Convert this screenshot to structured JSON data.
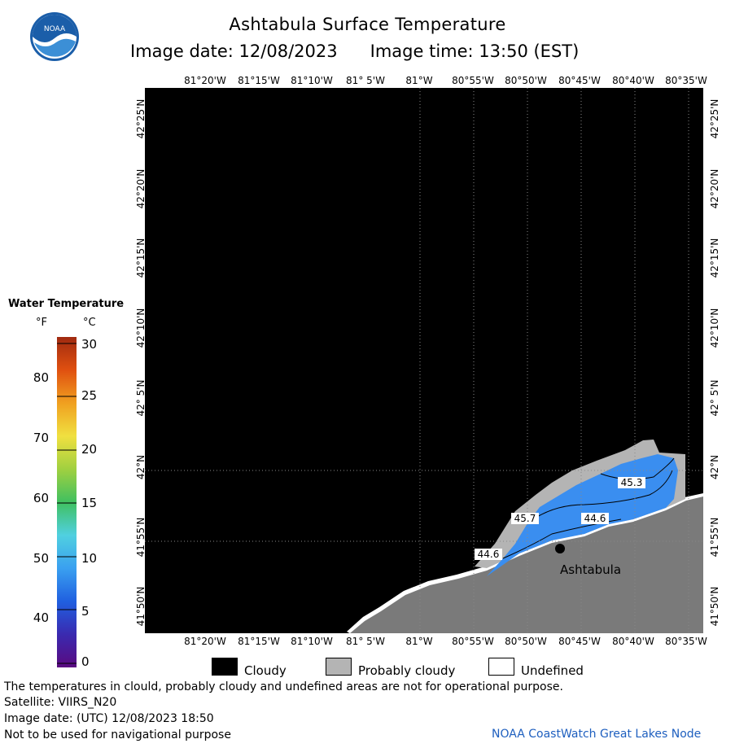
{
  "header": {
    "title": "Ashtabula Surface Temperature",
    "image_date_label": "Image date: 12/08/2023",
    "image_time_label": "Image time: 13:50 (EST)",
    "logo_text": "NOAA"
  },
  "map": {
    "lon_labels_top": [
      "81°20'W",
      "81°15'W",
      "81°10'W",
      "81° 5'W",
      "81°W",
      "80°55'W",
      "80°50'W",
      "80°45'W",
      "80°40'W",
      "80°35'W"
    ],
    "lon_labels_bottom": [
      "81°20'W",
      "81°15'W",
      "81°10'W",
      "81° 5'W",
      "81°W",
      "80°55'W",
      "80°50'W",
      "80°45'W",
      "80°40'W",
      "80°35'W"
    ],
    "lat_labels": [
      "42°25'N",
      "42°20'N",
      "42°15'N",
      "42°10'N",
      "42° 5'N",
      "42°N",
      "41°55'N",
      "41°50'N"
    ],
    "contour_labels": [
      "45.3",
      "45.7",
      "44.6",
      "44.6"
    ],
    "city_label": "Ashtabula",
    "colors": {
      "cloudy": "#000000",
      "probably_cloudy": "#b4b4b4",
      "land": "#7a7a7a",
      "water": "#3a8ef0",
      "undefined": "#ffffff"
    }
  },
  "legend": {
    "title": "Water Temperature",
    "unit_f": "°F",
    "unit_c": "°C",
    "f_ticks": [
      "80",
      "70",
      "60",
      "50",
      "40"
    ],
    "c_ticks": [
      "30",
      "25",
      "20",
      "15",
      "10",
      "5",
      "0"
    ]
  },
  "key": {
    "cloudy": "Cloudy",
    "probably_cloudy": "Probably cloudy",
    "undefined": "Undefined"
  },
  "footer": {
    "line1": "The temperatures in clould, probably cloudy and undefined areas are not for operational purpose.",
    "line2": "Satellite: VIIRS_N20",
    "line3": "Image date: (UTC) 12/08/2023   18:50",
    "line4": "Not to be used for navigational purpose",
    "credit": "NOAA CoastWatch Great Lakes Node"
  }
}
